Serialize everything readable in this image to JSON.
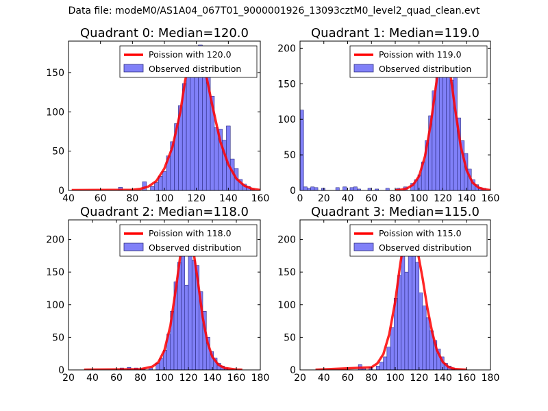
{
  "figure": {
    "suptitle": "Data file: modeM0/AS1A04_067T01_9000001926_13093cztM0_level2_quad_clean.evt"
  },
  "chart_data": [
    {
      "type": "bar",
      "title": "Quadrant 0: Median=120.0",
      "legend": {
        "placement": "top-right",
        "line_label": "Poission with 120.0",
        "bar_label": "Observed distribution"
      },
      "xlim": [
        40,
        160
      ],
      "ylim": [
        0,
        190
      ],
      "xticks": [
        40,
        60,
        80,
        100,
        120,
        140,
        160
      ],
      "yticks": [
        0,
        50,
        100,
        150
      ],
      "bin_width": 2.5,
      "bars": [
        [
          72.5,
          4
        ],
        [
          87.5,
          11
        ],
        [
          92.5,
          5
        ],
        [
          95,
          10
        ],
        [
          97.5,
          18
        ],
        [
          100,
          24
        ],
        [
          102.5,
          44
        ],
        [
          105,
          62
        ],
        [
          107.5,
          85
        ],
        [
          110,
          108
        ],
        [
          112.5,
          136
        ],
        [
          115,
          150
        ],
        [
          117.5,
          170
        ],
        [
          120,
          146
        ],
        [
          122.5,
          185
        ],
        [
          125,
          162
        ],
        [
          127.5,
          150
        ],
        [
          130,
          120
        ],
        [
          132.5,
          80
        ],
        [
          135,
          78
        ],
        [
          137.5,
          64
        ],
        [
          140,
          82
        ],
        [
          142.5,
          40
        ],
        [
          145,
          28
        ],
        [
          147.5,
          14
        ],
        [
          150,
          8
        ],
        [
          152.5,
          5
        ],
        [
          155,
          2
        ]
      ],
      "curve": [
        [
          42,
          0.4
        ],
        [
          80,
          0.8
        ],
        [
          85,
          2
        ],
        [
          90,
          5
        ],
        [
          95,
          12
        ],
        [
          100,
          28
        ],
        [
          105,
          55
        ],
        [
          110,
          100
        ],
        [
          113,
          140
        ],
        [
          116,
          166
        ],
        [
          118,
          178
        ],
        [
          120,
          182
        ],
        [
          122,
          178
        ],
        [
          124,
          166
        ],
        [
          127,
          138
        ],
        [
          130,
          108
        ],
        [
          135,
          62
        ],
        [
          140,
          33
        ],
        [
          145,
          15
        ],
        [
          150,
          6
        ],
        [
          155,
          2
        ],
        [
          160,
          0.5
        ]
      ]
    },
    {
      "type": "bar",
      "title": "Quadrant 1: Median=119.0",
      "legend": {
        "placement": "top-right",
        "line_label": "Poission with 119.0",
        "bar_label": "Observed distribution"
      },
      "xlim": [
        0,
        160
      ],
      "ylim": [
        0,
        210
      ],
      "xticks": [
        0,
        20,
        40,
        60,
        80,
        100,
        120,
        140,
        160
      ],
      "yticks": [
        0,
        50,
        100,
        150,
        200
      ],
      "bin_width": 3,
      "bars": [
        [
          1.5,
          113
        ],
        [
          4.5,
          5
        ],
        [
          7.5,
          3
        ],
        [
          10.5,
          5
        ],
        [
          13.5,
          4
        ],
        [
          19.5,
          3
        ],
        [
          31.5,
          4
        ],
        [
          37.5,
          5
        ],
        [
          43.5,
          4
        ],
        [
          46.5,
          5
        ],
        [
          49.5,
          2
        ],
        [
          58.5,
          3
        ],
        [
          64.5,
          2
        ],
        [
          73.5,
          3
        ],
        [
          82.5,
          3
        ],
        [
          88.5,
          5
        ],
        [
          94.5,
          10
        ],
        [
          97.5,
          15
        ],
        [
          100.5,
          22
        ],
        [
          103.5,
          40
        ],
        [
          106.5,
          70
        ],
        [
          109.5,
          105
        ],
        [
          112.5,
          140
        ],
        [
          115.5,
          168
        ],
        [
          118.5,
          195
        ],
        [
          121.5,
          175
        ],
        [
          124.5,
          200
        ],
        [
          127.5,
          155
        ],
        [
          130.5,
          180
        ],
        [
          133.5,
          102
        ],
        [
          136.5,
          70
        ],
        [
          139.5,
          52
        ],
        [
          142.5,
          30
        ],
        [
          145.5,
          15
        ],
        [
          148.5,
          8
        ],
        [
          151.5,
          4
        ],
        [
          154.5,
          3
        ]
      ],
      "curve": [
        [
          80,
          0.3
        ],
        [
          85,
          1
        ],
        [
          90,
          3
        ],
        [
          95,
          8
        ],
        [
          100,
          20
        ],
        [
          105,
          48
        ],
        [
          110,
          95
        ],
        [
          114,
          145
        ],
        [
          117,
          180
        ],
        [
          119,
          200
        ],
        [
          121,
          202
        ],
        [
          123,
          195
        ],
        [
          126,
          168
        ],
        [
          130,
          118
        ],
        [
          135,
          62
        ],
        [
          140,
          28
        ],
        [
          145,
          11
        ],
        [
          150,
          4
        ],
        [
          155,
          1.5
        ],
        [
          160,
          0.5
        ]
      ]
    },
    {
      "type": "bar",
      "title": "Quadrant 2: Median=118.0",
      "legend": {
        "placement": "top-right",
        "line_label": "Poission with 118.0",
        "bar_label": "Observed distribution"
      },
      "xlim": [
        20,
        180
      ],
      "ylim": [
        0,
        230
      ],
      "xticks": [
        20,
        40,
        60,
        80,
        100,
        120,
        140,
        160,
        180
      ],
      "yticks": [
        0,
        50,
        100,
        150,
        200
      ],
      "bin_width": 3,
      "bars": [
        [
          64.5,
          3
        ],
        [
          70.5,
          4
        ],
        [
          76.5,
          3
        ],
        [
          82.5,
          2
        ],
        [
          88.5,
          3
        ],
        [
          94.5,
          10
        ],
        [
          97.5,
          18
        ],
        [
          100.5,
          30
        ],
        [
          103.5,
          55
        ],
        [
          106.5,
          90
        ],
        [
          109.5,
          135
        ],
        [
          112.5,
          165
        ],
        [
          115.5,
          195
        ],
        [
          118.5,
          130
        ],
        [
          121.5,
          215
        ],
        [
          124.5,
          168
        ],
        [
          127.5,
          160
        ],
        [
          130.5,
          120
        ],
        [
          133.5,
          90
        ],
        [
          136.5,
          50
        ],
        [
          139.5,
          28
        ],
        [
          142.5,
          18
        ],
        [
          145.5,
          10
        ],
        [
          148.5,
          6
        ],
        [
          151.5,
          3
        ]
      ],
      "curve": [
        [
          33,
          0.3
        ],
        [
          80,
          1
        ],
        [
          90,
          5
        ],
        [
          95,
          12
        ],
        [
          100,
          30
        ],
        [
          105,
          68
        ],
        [
          110,
          130
        ],
        [
          114,
          185
        ],
        [
          117,
          210
        ],
        [
          119,
          216
        ],
        [
          121,
          210
        ],
        [
          124,
          185
        ],
        [
          128,
          135
        ],
        [
          132,
          80
        ],
        [
          136,
          42
        ],
        [
          140,
          20
        ],
        [
          145,
          8
        ],
        [
          150,
          3
        ],
        [
          160,
          0.5
        ],
        [
          165,
          0.3
        ]
      ]
    },
    {
      "type": "bar",
      "title": "Quadrant 3: Median=115.0",
      "legend": {
        "placement": "top-right",
        "line_label": "Poission with 115.0",
        "bar_label": "Observed distribution"
      },
      "xlim": [
        20,
        180
      ],
      "ylim": [
        0,
        230
      ],
      "xticks": [
        20,
        40,
        60,
        80,
        100,
        120,
        140,
        160,
        180
      ],
      "yticks": [
        0,
        50,
        100,
        150,
        200
      ],
      "bin_width": 3,
      "bars": [
        [
          70.5,
          8
        ],
        [
          73.5,
          3
        ],
        [
          79.5,
          4
        ],
        [
          85.5,
          6
        ],
        [
          88.5,
          12
        ],
        [
          91.5,
          20
        ],
        [
          94.5,
          35
        ],
        [
          97.5,
          65
        ],
        [
          100.5,
          110
        ],
        [
          103.5,
          145
        ],
        [
          106.5,
          190
        ],
        [
          109.5,
          150
        ],
        [
          112.5,
          210
        ],
        [
          115.5,
          175
        ],
        [
          118.5,
          165
        ],
        [
          121.5,
          118
        ],
        [
          124.5,
          98
        ],
        [
          127.5,
          80
        ],
        [
          130.5,
          60
        ],
        [
          133.5,
          45
        ],
        [
          136.5,
          32
        ],
        [
          139.5,
          20
        ],
        [
          142.5,
          10
        ],
        [
          145.5,
          6
        ],
        [
          148.5,
          3
        ]
      ],
      "curve": [
        [
          33,
          0.3
        ],
        [
          80,
          4
        ],
        [
          85,
          10
        ],
        [
          90,
          24
        ],
        [
          95,
          55
        ],
        [
          100,
          105
        ],
        [
          104,
          160
        ],
        [
          107,
          195
        ],
        [
          110,
          210
        ],
        [
          113,
          214
        ],
        [
          116,
          205
        ],
        [
          119,
          180
        ],
        [
          123,
          140
        ],
        [
          127,
          95
        ],
        [
          131,
          58
        ],
        [
          135,
          30
        ],
        [
          140,
          12
        ],
        [
          145,
          4
        ],
        [
          150,
          1.5
        ],
        [
          160,
          0.3
        ]
      ]
    }
  ]
}
